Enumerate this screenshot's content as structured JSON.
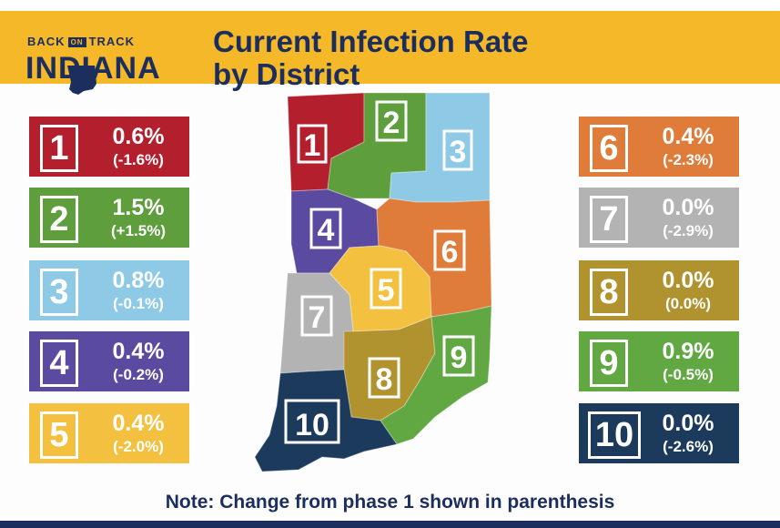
{
  "logo": {
    "back": "BACK",
    "on": "ON",
    "track": "TRACK",
    "main": "INDIANA"
  },
  "title": {
    "line1": "Current Infection Rate",
    "line2": "by District"
  },
  "districts": [
    {
      "num": "1",
      "rate": "0.6%",
      "change": "(-1.6%)",
      "color": "#b41f2e"
    },
    {
      "num": "2",
      "rate": "1.5%",
      "change": "(+1.5%)",
      "color": "#5f9e3d"
    },
    {
      "num": "3",
      "rate": "0.8%",
      "change": "(-0.1%)",
      "color": "#8ecae6"
    },
    {
      "num": "4",
      "rate": "0.4%",
      "change": "(-0.2%)",
      "color": "#5a4aa0"
    },
    {
      "num": "5",
      "rate": "0.4%",
      "change": "(-2.0%)",
      "color": "#f4c040"
    },
    {
      "num": "6",
      "rate": "0.4%",
      "change": "(-2.3%)",
      "color": "#e07c3a"
    },
    {
      "num": "7",
      "rate": "0.0%",
      "change": "(-2.9%)",
      "color": "#b3b3b3"
    },
    {
      "num": "8",
      "rate": "0.0%",
      "change": "(0.0%)",
      "color": "#b0922e"
    },
    {
      "num": "9",
      "rate": "0.9%",
      "change": "(-0.5%)",
      "color": "#61a843"
    },
    {
      "num": "10",
      "rate": "0.0%",
      "change": "(-2.6%)",
      "color": "#1b3a5c"
    }
  ],
  "map_labels": [
    "1",
    "2",
    "3",
    "4",
    "5",
    "6",
    "7",
    "8",
    "9",
    "10"
  ],
  "note": "Note:  Change from phase 1 shown in parenthesis",
  "colors": {
    "banner": "#f4b829",
    "navy": "#1b2e5e"
  }
}
